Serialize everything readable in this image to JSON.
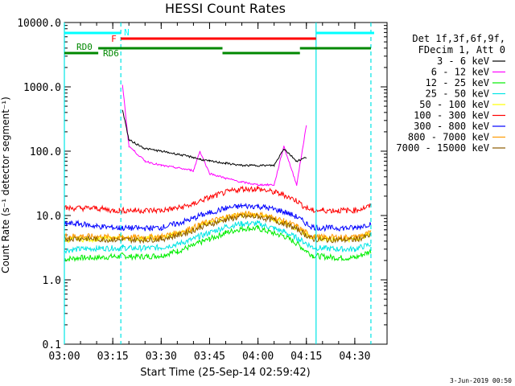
{
  "chart_data": {
    "type": "line",
    "title": "HESSI Count Rates",
    "xlabel": "Start Time (25-Sep-14 02:59:42)",
    "ylabel": "Count Rate (s⁻¹ detector segment⁻¹)",
    "yscale": "log",
    "ylim": [
      0.1,
      10000
    ],
    "xlim": [
      "03:00",
      "04:40"
    ],
    "x_ticks": [
      "03:00",
      "03:15",
      "03:30",
      "03:45",
      "04:00",
      "04:15",
      "04:30"
    ],
    "y_ticks": [
      "0.1",
      "1.0",
      "10.0",
      "100.0",
      "1000.0",
      "10000.0"
    ],
    "legend_header": [
      "Det 1f,3f,6f,9f,",
      "FDecim 1, Att 0"
    ],
    "legend_position": "right",
    "grid": false,
    "x_minutes": [
      0,
      5,
      10,
      15,
      17,
      18,
      20,
      25,
      30,
      35,
      40,
      42,
      45,
      50,
      55,
      60,
      65,
      68,
      72,
      75,
      77,
      80,
      85,
      90,
      95
    ],
    "series": [
      {
        "name": "3 - 6 keV",
        "color": "#000000",
        "values": [
          null,
          null,
          null,
          null,
          null,
          450,
          150,
          110,
          100,
          90,
          80,
          75,
          70,
          65,
          60,
          60,
          60,
          110,
          70,
          80,
          null,
          null,
          null,
          null,
          null
        ]
      },
      {
        "name": "6 - 12 keV",
        "color": "#ff00ff",
        "values": [
          null,
          null,
          null,
          null,
          null,
          1100,
          120,
          70,
          60,
          55,
          50,
          100,
          45,
          38,
          33,
          30,
          30,
          120,
          30,
          250,
          null,
          null,
          null,
          null,
          null
        ]
      },
      {
        "name": "12 - 25 keV",
        "color": "#00ee00",
        "values": [
          2.1,
          2.2,
          2.2,
          2.3,
          2.3,
          2.4,
          2.3,
          2.3,
          2.4,
          2.8,
          3.4,
          3.8,
          4.3,
          5.4,
          6.3,
          6.3,
          5.3,
          4.8,
          3.7,
          2.8,
          2.4,
          2.3,
          2.2,
          2.2,
          2.8
        ]
      },
      {
        "name": "25 - 50 keV",
        "color": "#00e5e5",
        "values": [
          2.9,
          3.0,
          3.1,
          3.1,
          3.1,
          3.2,
          3.1,
          3.1,
          3.2,
          3.6,
          4.3,
          4.8,
          5.4,
          6.7,
          7.5,
          7.5,
          6.3,
          5.6,
          4.5,
          3.7,
          3.2,
          3.1,
          3.0,
          3.0,
          3.6
        ]
      },
      {
        "name": "50 - 100 keV",
        "color": "#ffff00",
        "values": [
          4.2,
          4.3,
          4.3,
          4.4,
          4.4,
          4.5,
          4.4,
          4.4,
          4.5,
          5.2,
          6.2,
          6.9,
          7.6,
          9.2,
          10.2,
          10.2,
          8.7,
          7.8,
          6.4,
          5.1,
          4.6,
          4.4,
          4.3,
          4.3,
          5.2
        ]
      },
      {
        "name": "100 - 300 keV",
        "color": "#ff0000",
        "values": [
          13,
          13,
          13,
          12,
          12,
          12,
          12,
          12,
          12,
          13,
          15,
          17,
          19,
          23,
          26,
          26,
          23,
          21,
          17,
          13,
          12,
          12,
          12,
          12,
          14
        ]
      },
      {
        "name": "300 - 800 keV",
        "color": "#0000ff",
        "values": [
          7.5,
          7.4,
          6.8,
          6.5,
          6.4,
          6.4,
          6.4,
          6.3,
          6.5,
          7.5,
          9.0,
          10.0,
          11.0,
          13.0,
          14.0,
          14.0,
          12.5,
          11.5,
          9.5,
          7.5,
          6.6,
          6.4,
          6.4,
          6.4,
          7.5
        ]
      },
      {
        "name": "800 - 7000 keV",
        "color": "#ff9900",
        "values": [
          4.8,
          4.8,
          4.7,
          4.6,
          4.6,
          4.6,
          4.6,
          4.6,
          4.7,
          5.4,
          6.5,
          7.2,
          8.0,
          9.5,
          10.5,
          10.5,
          9.2,
          8.2,
          6.8,
          5.4,
          4.7,
          4.6,
          4.6,
          4.6,
          5.4
        ]
      },
      {
        "name": "7000 - 15000 keV",
        "color": "#8b5a00",
        "values": [
          4.4,
          4.4,
          4.3,
          4.2,
          4.2,
          4.2,
          4.2,
          4.2,
          4.3,
          4.9,
          5.9,
          6.6,
          7.3,
          8.7,
          9.6,
          9.6,
          8.4,
          7.5,
          6.2,
          4.9,
          4.3,
          4.2,
          4.2,
          4.2,
          4.9
        ]
      }
    ],
    "flags": [
      {
        "label": "N",
        "color": "#00ffff",
        "segments": [
          [
            0,
            17.5
          ],
          [
            78,
            96
          ]
        ]
      },
      {
        "label": "F",
        "color": "#ff0000",
        "segments": [
          [
            17.5,
            78
          ]
        ]
      },
      {
        "label": "RD0",
        "color": "#008800",
        "segments": [
          [
            0,
            10.5
          ],
          [
            10.5,
            49
          ],
          [
            49,
            73
          ],
          [
            73,
            95
          ]
        ]
      },
      {
        "label": "RD6",
        "color": "#008800",
        "segments": []
      }
    ],
    "vlines": [
      {
        "minute": 0,
        "style": "solid"
      },
      {
        "minute": 17.5,
        "style": "dashed"
      },
      {
        "minute": 78,
        "style": "solid"
      },
      {
        "minute": 95,
        "style": "dashed"
      }
    ]
  },
  "footer_date": "3-Jun-2019 00:50"
}
